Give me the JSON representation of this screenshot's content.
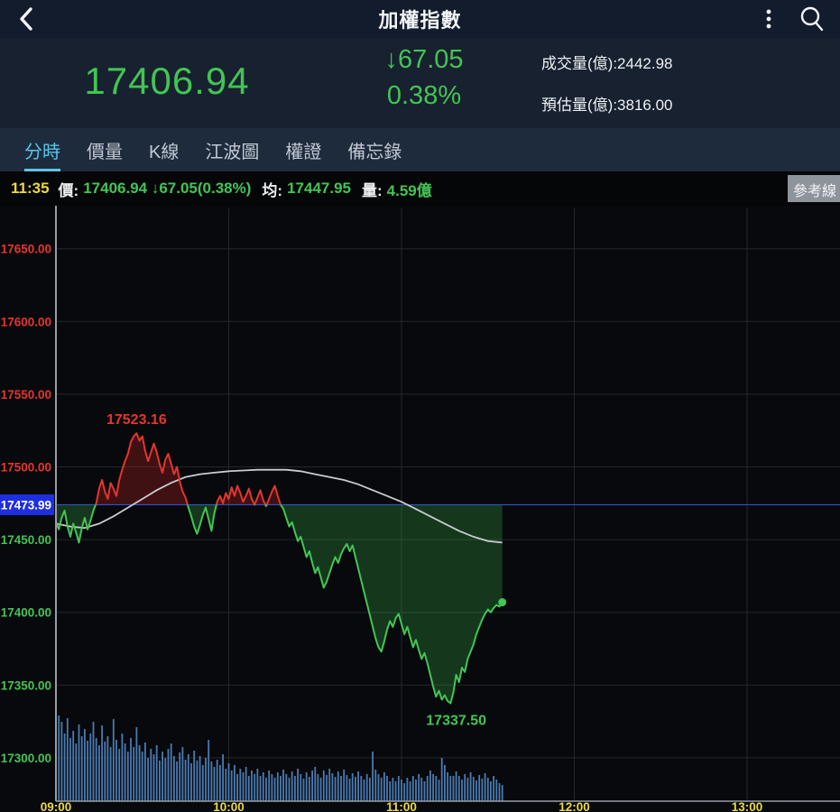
{
  "header": {
    "title": "加權指數",
    "back_icon": "back-arrow",
    "menu_icon": "kebab-menu",
    "search_icon": "search-magnifier"
  },
  "quote": {
    "price": "17406.94",
    "change_arrow": "↓",
    "change": "67.05",
    "change_pct": "0.38%",
    "volume_label": "成交量(億):",
    "volume_value": "2442.98",
    "est_volume_label": "預估量(億):",
    "est_volume_value": "3816.00"
  },
  "tabs": [
    {
      "label": "分時",
      "active": true
    },
    {
      "label": "價量",
      "active": false
    },
    {
      "label": "K線",
      "active": false
    },
    {
      "label": "江波圖",
      "active": false
    },
    {
      "label": "權證",
      "active": false
    },
    {
      "label": "備忘錄",
      "active": false
    }
  ],
  "ticker": {
    "time": "11:35",
    "price_label": "價:",
    "price": "17406.94 ↓67.05(0.38%)",
    "avg_label": "均:",
    "avg": "17447.95",
    "vol_label": "量:",
    "vol": "4.59億",
    "ref_button": "參考線"
  },
  "colors": {
    "up_red": "#e5352e",
    "down_green": "#43c454",
    "red_fill": "rgba(200,35,35,0.30)",
    "green_fill": "rgba(55,165,70,0.30)",
    "reference_line": "#2f54d0",
    "reference_badge": "#1e2fe2",
    "ma_line": "#c9cbd0",
    "volume_bar": "#4a7bb2",
    "grid": "#24272d",
    "axis": "#989ea6",
    "time_label_yellow": "#ecd93f",
    "tab_active_cyan": "#5cc5e8"
  },
  "chart_data": {
    "type": "line",
    "title": "加權指數 分時走勢 (intraday)",
    "xlabel": "",
    "ylabel": "",
    "x_ticks": [
      "09:00",
      "10:00",
      "11:00",
      "12:00",
      "13:00"
    ],
    "x_range_minutes": [
      0,
      272
    ],
    "y_ticks": [
      17650,
      17600,
      17550,
      17500,
      17450,
      17400,
      17350,
      17300
    ],
    "ylim": [
      17270,
      17678
    ],
    "reference_value": 17473.99,
    "reference_label": "17473.99",
    "high_annotation": "17523.16",
    "low_annotation": "17337.50",
    "last_price": 17406.94,
    "grid": true,
    "series": [
      {
        "name": "price",
        "points": [
          [
            0,
            17462
          ],
          [
            1,
            17457
          ],
          [
            2,
            17465
          ],
          [
            3,
            17470
          ],
          [
            4,
            17459
          ],
          [
            5,
            17452
          ],
          [
            6,
            17461
          ],
          [
            7,
            17455
          ],
          [
            8,
            17448
          ],
          [
            9,
            17458
          ],
          [
            10,
            17465
          ],
          [
            11,
            17457
          ],
          [
            12,
            17463
          ],
          [
            13,
            17470
          ],
          [
            14,
            17475
          ],
          [
            15,
            17485
          ],
          [
            16,
            17491
          ],
          [
            17,
            17483
          ],
          [
            18,
            17478
          ],
          [
            19,
            17489
          ],
          [
            20,
            17485
          ],
          [
            21,
            17480
          ],
          [
            22,
            17491
          ],
          [
            23,
            17498
          ],
          [
            24,
            17504
          ],
          [
            25,
            17509
          ],
          [
            26,
            17517
          ],
          [
            27,
            17521
          ],
          [
            28,
            17523.16
          ],
          [
            29,
            17518
          ],
          [
            30,
            17521
          ],
          [
            31,
            17511
          ],
          [
            32,
            17504
          ],
          [
            33,
            17510
          ],
          [
            34,
            17516
          ],
          [
            35,
            17510
          ],
          [
            36,
            17502
          ],
          [
            37,
            17496
          ],
          [
            38,
            17505
          ],
          [
            39,
            17509
          ],
          [
            40,
            17502
          ],
          [
            41,
            17495
          ],
          [
            42,
            17500
          ],
          [
            43,
            17490
          ],
          [
            44,
            17483
          ],
          [
            45,
            17479
          ],
          [
            46,
            17472
          ],
          [
            47,
            17466
          ],
          [
            48,
            17459
          ],
          [
            49,
            17454
          ],
          [
            50,
            17460
          ],
          [
            51,
            17467
          ],
          [
            52,
            17472
          ],
          [
            53,
            17464
          ],
          [
            54,
            17456
          ],
          [
            55,
            17468
          ],
          [
            56,
            17476
          ],
          [
            57,
            17480
          ],
          [
            58,
            17475
          ],
          [
            59,
            17482
          ],
          [
            60,
            17478
          ],
          [
            61,
            17486
          ],
          [
            62,
            17480
          ],
          [
            63,
            17487
          ],
          [
            64,
            17482
          ],
          [
            65,
            17476
          ],
          [
            66,
            17480
          ],
          [
            67,
            17485
          ],
          [
            68,
            17478
          ],
          [
            69,
            17474
          ],
          [
            70,
            17479
          ],
          [
            71,
            17484
          ],
          [
            72,
            17477
          ],
          [
            73,
            17473
          ],
          [
            74,
            17478
          ],
          [
            75,
            17483
          ],
          [
            76,
            17487
          ],
          [
            77,
            17480
          ],
          [
            78,
            17474
          ],
          [
            79,
            17471
          ],
          [
            80,
            17465
          ],
          [
            81,
            17459
          ],
          [
            82,
            17462
          ],
          [
            83,
            17455
          ],
          [
            84,
            17449
          ],
          [
            85,
            17452
          ],
          [
            86,
            17445
          ],
          [
            87,
            17438
          ],
          [
            88,
            17442
          ],
          [
            89,
            17434
          ],
          [
            90,
            17427
          ],
          [
            91,
            17431
          ],
          [
            92,
            17424
          ],
          [
            93,
            17417
          ],
          [
            94,
            17421
          ],
          [
            95,
            17427
          ],
          [
            96,
            17433
          ],
          [
            97,
            17438
          ],
          [
            98,
            17434
          ],
          [
            99,
            17440
          ],
          [
            100,
            17444
          ],
          [
            101,
            17447
          ],
          [
            102,
            17442
          ],
          [
            103,
            17446
          ],
          [
            104,
            17438
          ],
          [
            105,
            17430
          ],
          [
            106,
            17422
          ],
          [
            107,
            17414
          ],
          [
            108,
            17406
          ],
          [
            109,
            17398
          ],
          [
            110,
            17390
          ],
          [
            111,
            17382
          ],
          [
            112,
            17376
          ],
          [
            113,
            17373
          ],
          [
            114,
            17380
          ],
          [
            115,
            17388
          ],
          [
            116,
            17394
          ],
          [
            117,
            17390
          ],
          [
            118,
            17396
          ],
          [
            119,
            17399
          ],
          [
            120,
            17392
          ],
          [
            121,
            17385
          ],
          [
            122,
            17390
          ],
          [
            123,
            17383
          ],
          [
            124,
            17376
          ],
          [
            125,
            17381
          ],
          [
            126,
            17374
          ],
          [
            127,
            17368
          ],
          [
            128,
            17372
          ],
          [
            129,
            17365
          ],
          [
            130,
            17357
          ],
          [
            131,
            17349
          ],
          [
            132,
            17342
          ],
          [
            133,
            17346
          ],
          [
            134,
            17340
          ],
          [
            135,
            17343
          ],
          [
            136,
            17339
          ],
          [
            137,
            17337.5
          ],
          [
            138,
            17345
          ],
          [
            139,
            17357
          ],
          [
            140,
            17352
          ],
          [
            141,
            17362
          ],
          [
            142,
            17359
          ],
          [
            143,
            17368
          ],
          [
            144,
            17373
          ],
          [
            145,
            17378
          ],
          [
            146,
            17385
          ],
          [
            147,
            17390
          ],
          [
            148,
            17395
          ],
          [
            149,
            17399
          ],
          [
            150,
            17402
          ],
          [
            151,
            17400
          ],
          [
            152,
            17403
          ],
          [
            153,
            17405
          ],
          [
            154,
            17404
          ],
          [
            155,
            17406.94
          ]
        ]
      },
      {
        "name": "average",
        "points": [
          [
            0,
            17461
          ],
          [
            5,
            17459
          ],
          [
            10,
            17458
          ],
          [
            15,
            17461
          ],
          [
            20,
            17466
          ],
          [
            25,
            17472
          ],
          [
            30,
            17478
          ],
          [
            35,
            17484
          ],
          [
            40,
            17489
          ],
          [
            45,
            17493
          ],
          [
            50,
            17495
          ],
          [
            55,
            17496
          ],
          [
            60,
            17497
          ],
          [
            65,
            17497.5
          ],
          [
            70,
            17498
          ],
          [
            75,
            17498
          ],
          [
            80,
            17498
          ],
          [
            85,
            17497
          ],
          [
            90,
            17495
          ],
          [
            95,
            17493
          ],
          [
            100,
            17491
          ],
          [
            105,
            17488
          ],
          [
            110,
            17484
          ],
          [
            115,
            17480
          ],
          [
            120,
            17476
          ],
          [
            125,
            17471
          ],
          [
            130,
            17466
          ],
          [
            135,
            17461
          ],
          [
            140,
            17456
          ],
          [
            145,
            17452
          ],
          [
            150,
            17449
          ],
          [
            155,
            17447.95
          ]
        ]
      }
    ],
    "volume_rel": [
      123,
      95,
      88,
      75,
      92,
      70,
      78,
      64,
      85,
      72,
      80,
      67,
      75,
      88,
      70,
      62,
      84,
      66,
      72,
      60,
      91,
      68,
      58,
      75,
      64,
      55,
      70,
      60,
      82,
      62,
      55,
      65,
      48,
      58,
      52,
      62,
      45,
      55,
      48,
      58,
      64,
      50,
      44,
      54,
      60,
      46,
      52,
      42,
      56,
      45,
      50,
      40,
      48,
      68,
      44,
      38,
      46,
      40,
      52,
      36,
      42,
      34,
      40,
      30,
      36,
      32,
      38,
      28,
      34,
      30,
      36,
      28,
      32,
      26,
      34,
      30,
      26,
      32,
      28,
      35,
      30,
      26,
      33,
      28,
      36,
      30,
      25,
      32,
      27,
      34,
      38,
      30,
      26,
      34,
      29,
      36,
      31,
      27,
      33,
      28,
      35,
      29,
      25,
      31,
      27,
      33,
      28,
      24,
      30,
      26,
      55,
      35,
      30,
      26,
      32,
      28,
      22,
      26,
      22,
      28,
      24,
      20,
      26,
      22,
      28,
      24,
      30,
      26,
      22,
      28,
      34,
      30,
      28,
      24,
      48,
      40,
      32,
      28,
      28,
      33,
      28,
      24,
      30,
      26,
      32,
      27,
      23,
      29,
      25,
      31,
      26,
      22,
      28,
      24,
      20,
      18
    ]
  }
}
